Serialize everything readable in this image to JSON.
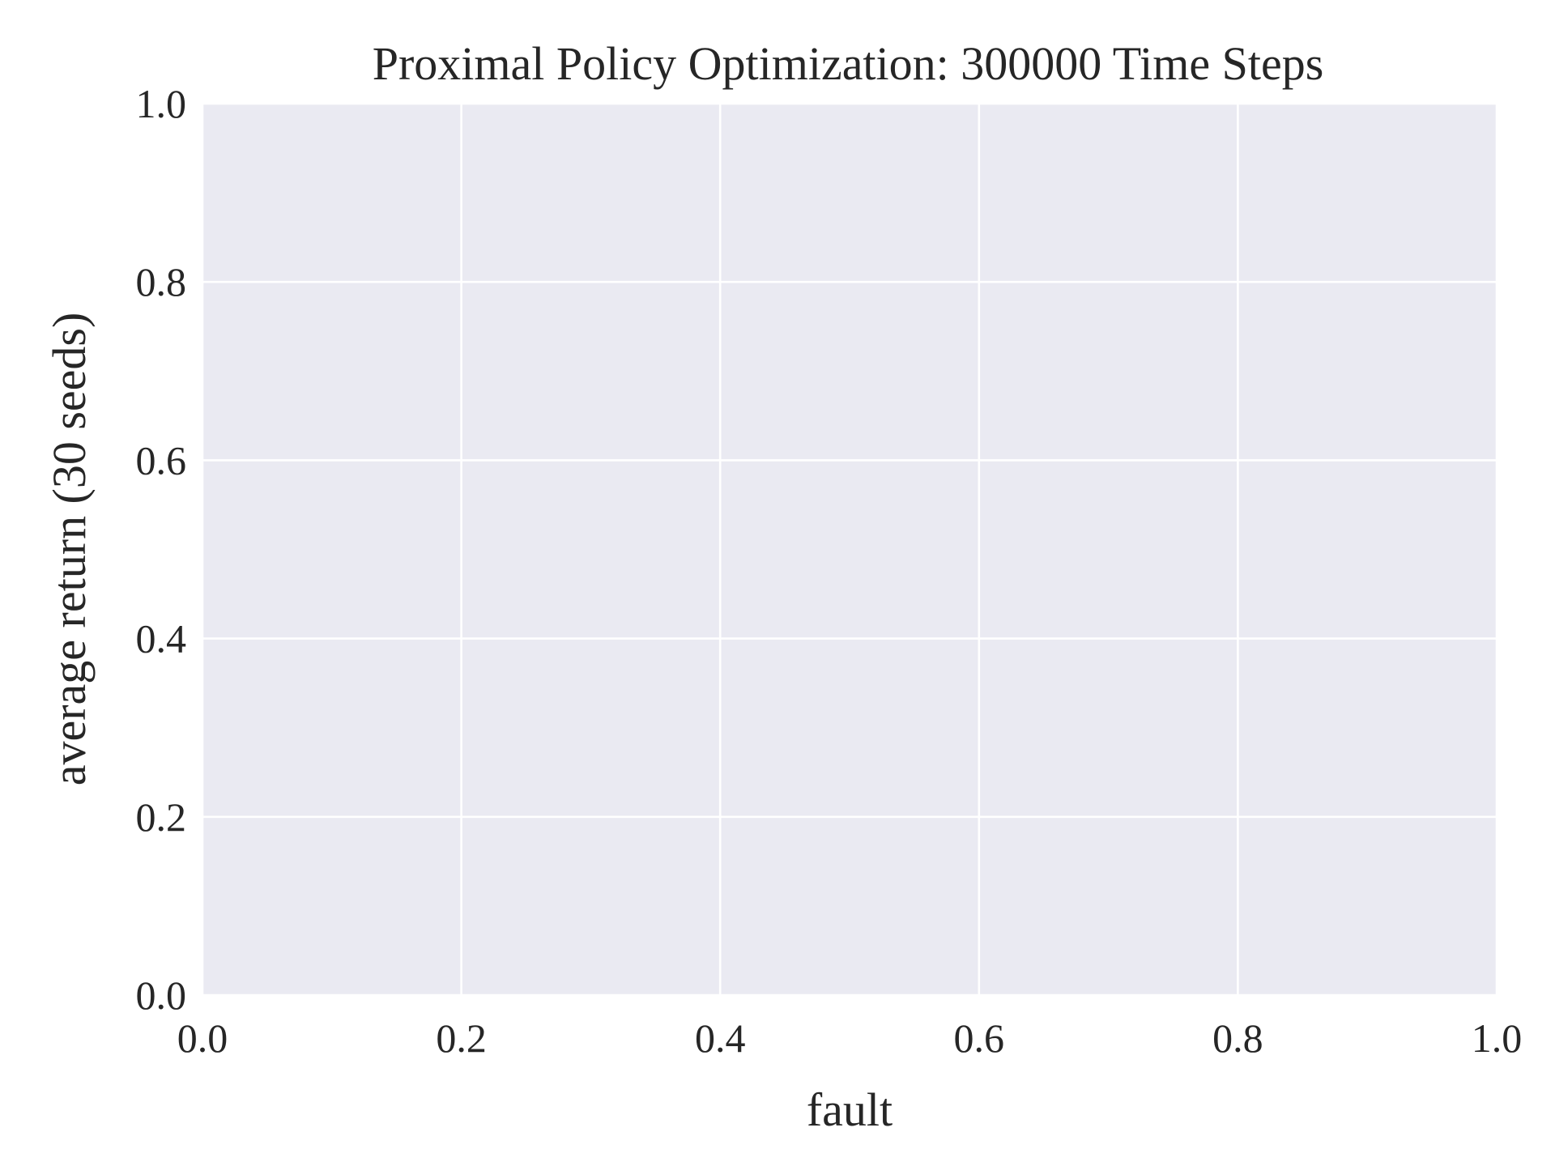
{
  "chart_data": {
    "type": "line",
    "title": "Proximal Policy Optimization: 300000 Time Steps",
    "xlabel": "fault",
    "ylabel": "average return (30 seeds)",
    "xlim": [
      0.0,
      1.0
    ],
    "ylim": [
      0.0,
      1.0
    ],
    "x_ticks": [
      "0.0",
      "0.2",
      "0.4",
      "0.6",
      "0.8",
      "1.0"
    ],
    "y_ticks": [
      "0.0",
      "0.2",
      "0.4",
      "0.6",
      "0.8",
      "1.0"
    ],
    "grid": true,
    "series": []
  },
  "colors": {
    "plot_background": "#eaeaf2",
    "grid": "#ffffff",
    "text": "#262626"
  }
}
